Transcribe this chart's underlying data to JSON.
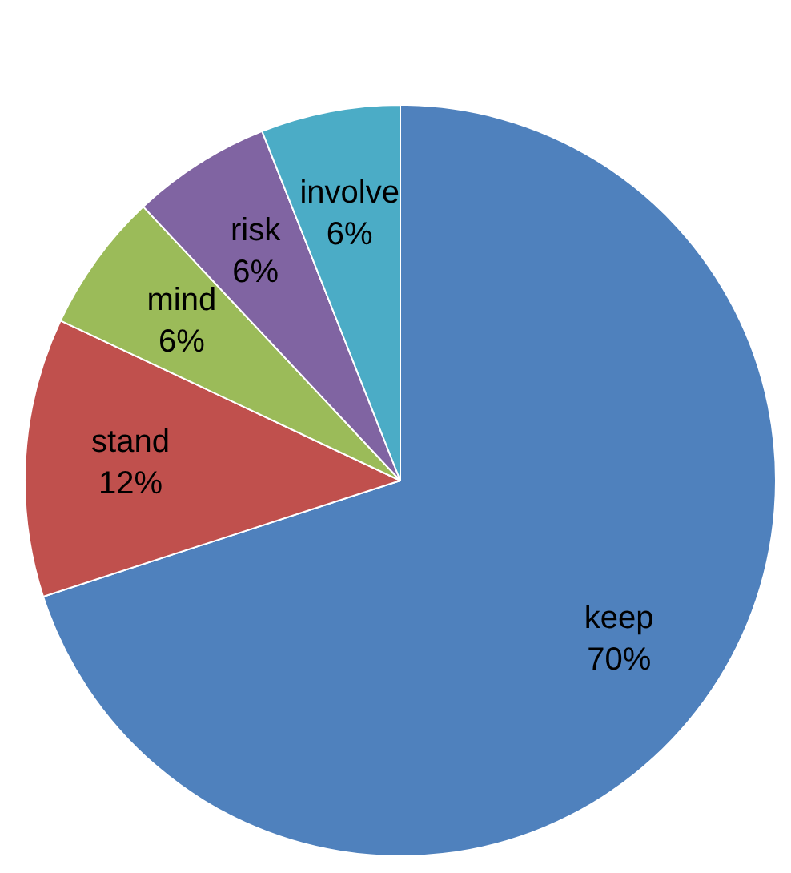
{
  "chart_data": {
    "type": "pie",
    "categories": [
      "keep",
      "stand",
      "mind",
      "risk",
      "involve"
    ],
    "values": [
      70,
      12,
      6,
      6,
      6
    ],
    "value_labels": [
      "70%",
      "12%",
      "6%",
      "6%",
      "6%"
    ],
    "colors": [
      "#4f81bd",
      "#c0504d",
      "#9bbb59",
      "#8064a2",
      "#4bacc6"
    ],
    "legend": false
  }
}
